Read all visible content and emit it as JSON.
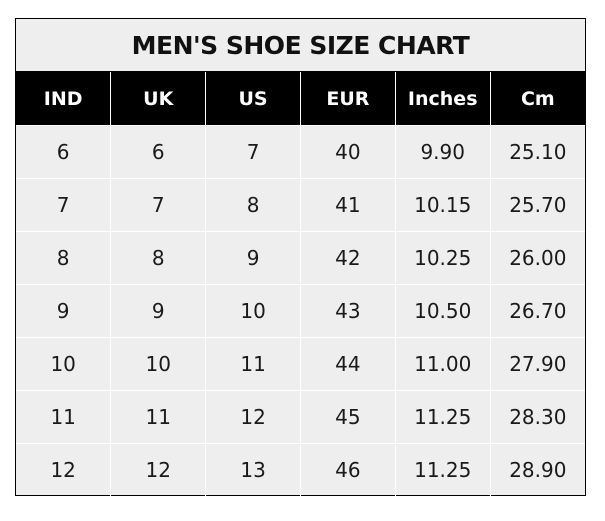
{
  "title": "MEN'S SHOE SIZE CHART",
  "columns": [
    "IND",
    "UK",
    "US",
    "EUR",
    "Inches",
    "Cm"
  ],
  "rows": [
    [
      "6",
      "6",
      "7",
      "40",
      "9.90",
      "25.10"
    ],
    [
      "7",
      "7",
      "8",
      "41",
      "10.15",
      "25.70"
    ],
    [
      "8",
      "8",
      "9",
      "42",
      "10.25",
      "26.00"
    ],
    [
      "9",
      "9",
      "10",
      "43",
      "10.50",
      "26.70"
    ],
    [
      "10",
      "10",
      "11",
      "44",
      "11.00",
      "27.90"
    ],
    [
      "11",
      "11",
      "12",
      "45",
      "11.25",
      "28.30"
    ],
    [
      "12",
      "12",
      "13",
      "46",
      "11.25",
      "28.90"
    ]
  ],
  "colors": {
    "header_bg": "#000000",
    "header_text": "#ffffff",
    "cell_bg": "#eeeeee"
  }
}
